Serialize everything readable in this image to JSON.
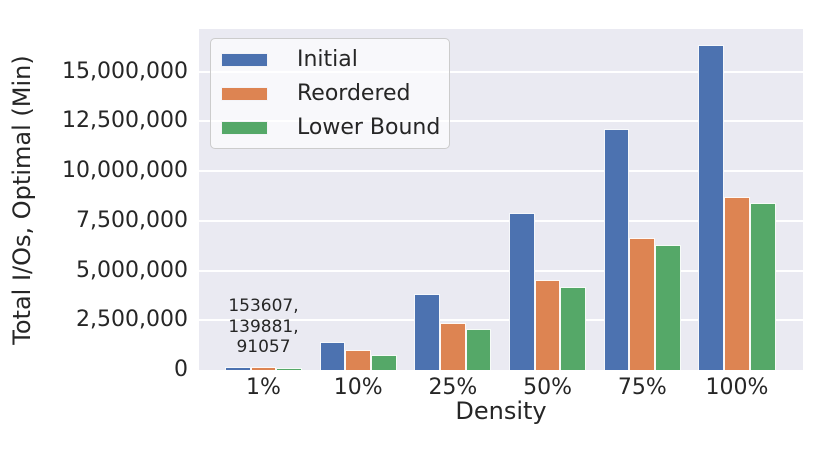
{
  "figure": {
    "background": "#ffffff",
    "plot_background": "#eaeaf2",
    "gridline_color": "#ffffff",
    "text_color": "#262626"
  },
  "chart_data": {
    "type": "bar",
    "title": "",
    "xlabel": "Density",
    "ylabel": "Total I/Os, Optimal (Min)",
    "categories": [
      "1%",
      "10%",
      "25%",
      "50%",
      "75%",
      "100%"
    ],
    "series": [
      {
        "name": "Initial",
        "color": "#4c72b0",
        "values": [
          153607,
          1400000,
          3800000,
          7900000,
          12100000,
          16350000
        ]
      },
      {
        "name": "Reordered",
        "color": "#dd8452",
        "values": [
          139881,
          1000000,
          2350000,
          4550000,
          6650000,
          8700000
        ]
      },
      {
        "name": "Lower Bound",
        "color": "#55a868",
        "values": [
          91057,
          750000,
          2050000,
          4150000,
          6300000,
          8400000
        ]
      }
    ],
    "ylim": [
      0,
      17150000
    ],
    "yticks": [
      0,
      2500000,
      5000000,
      7500000,
      10000000,
      12500000,
      15000000
    ],
    "ytick_labels": [
      "0",
      "2,500,000",
      "5,000,000",
      "7,500,000",
      "10,000,000",
      "12,500,000",
      "15,000,000"
    ],
    "grid": "horizontal",
    "legend_position": "upper-left",
    "annotation": {
      "text": "153607,\n139881,\n91057",
      "category_index": 0
    }
  }
}
